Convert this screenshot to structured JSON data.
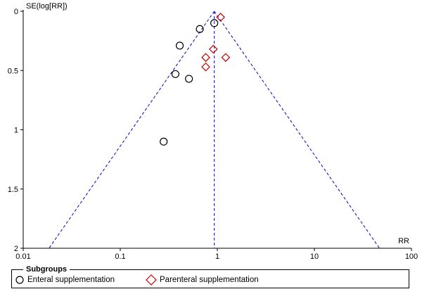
{
  "chart_data": {
    "type": "scatter",
    "title": "",
    "xlabel": "RR",
    "ylabel": "SE(log[RR])",
    "x_scale": "log",
    "xlim": [
      0.01,
      100
    ],
    "ylim": [
      2,
      0
    ],
    "x_ticks": [
      "0.01",
      "0.1",
      "1",
      "10",
      "100"
    ],
    "y_ticks": [
      "0",
      "0.5",
      "1",
      "1.5",
      "2"
    ],
    "pooled_estimate": 0.93,
    "funnel_limits": "95% pseudo-confidence",
    "series": [
      {
        "name": "Enteral supplementation",
        "marker": "circle",
        "color": "#000000",
        "points": [
          {
            "x": 0.93,
            "y": 0.1
          },
          {
            "x": 0.66,
            "y": 0.15
          },
          {
            "x": 0.41,
            "y": 0.29
          },
          {
            "x": 0.37,
            "y": 0.53
          },
          {
            "x": 0.51,
            "y": 0.57
          },
          {
            "x": 0.28,
            "y": 1.1
          }
        ]
      },
      {
        "name": "Parenteral supplementation",
        "marker": "diamond",
        "color": "#cc0000",
        "points": [
          {
            "x": 1.08,
            "y": 0.05
          },
          {
            "x": 0.91,
            "y": 0.32
          },
          {
            "x": 0.76,
            "y": 0.39
          },
          {
            "x": 1.22,
            "y": 0.39
          },
          {
            "x": 0.76,
            "y": 0.47
          }
        ]
      }
    ],
    "legend": {
      "title": "Subgroups",
      "position": "bottom"
    }
  }
}
